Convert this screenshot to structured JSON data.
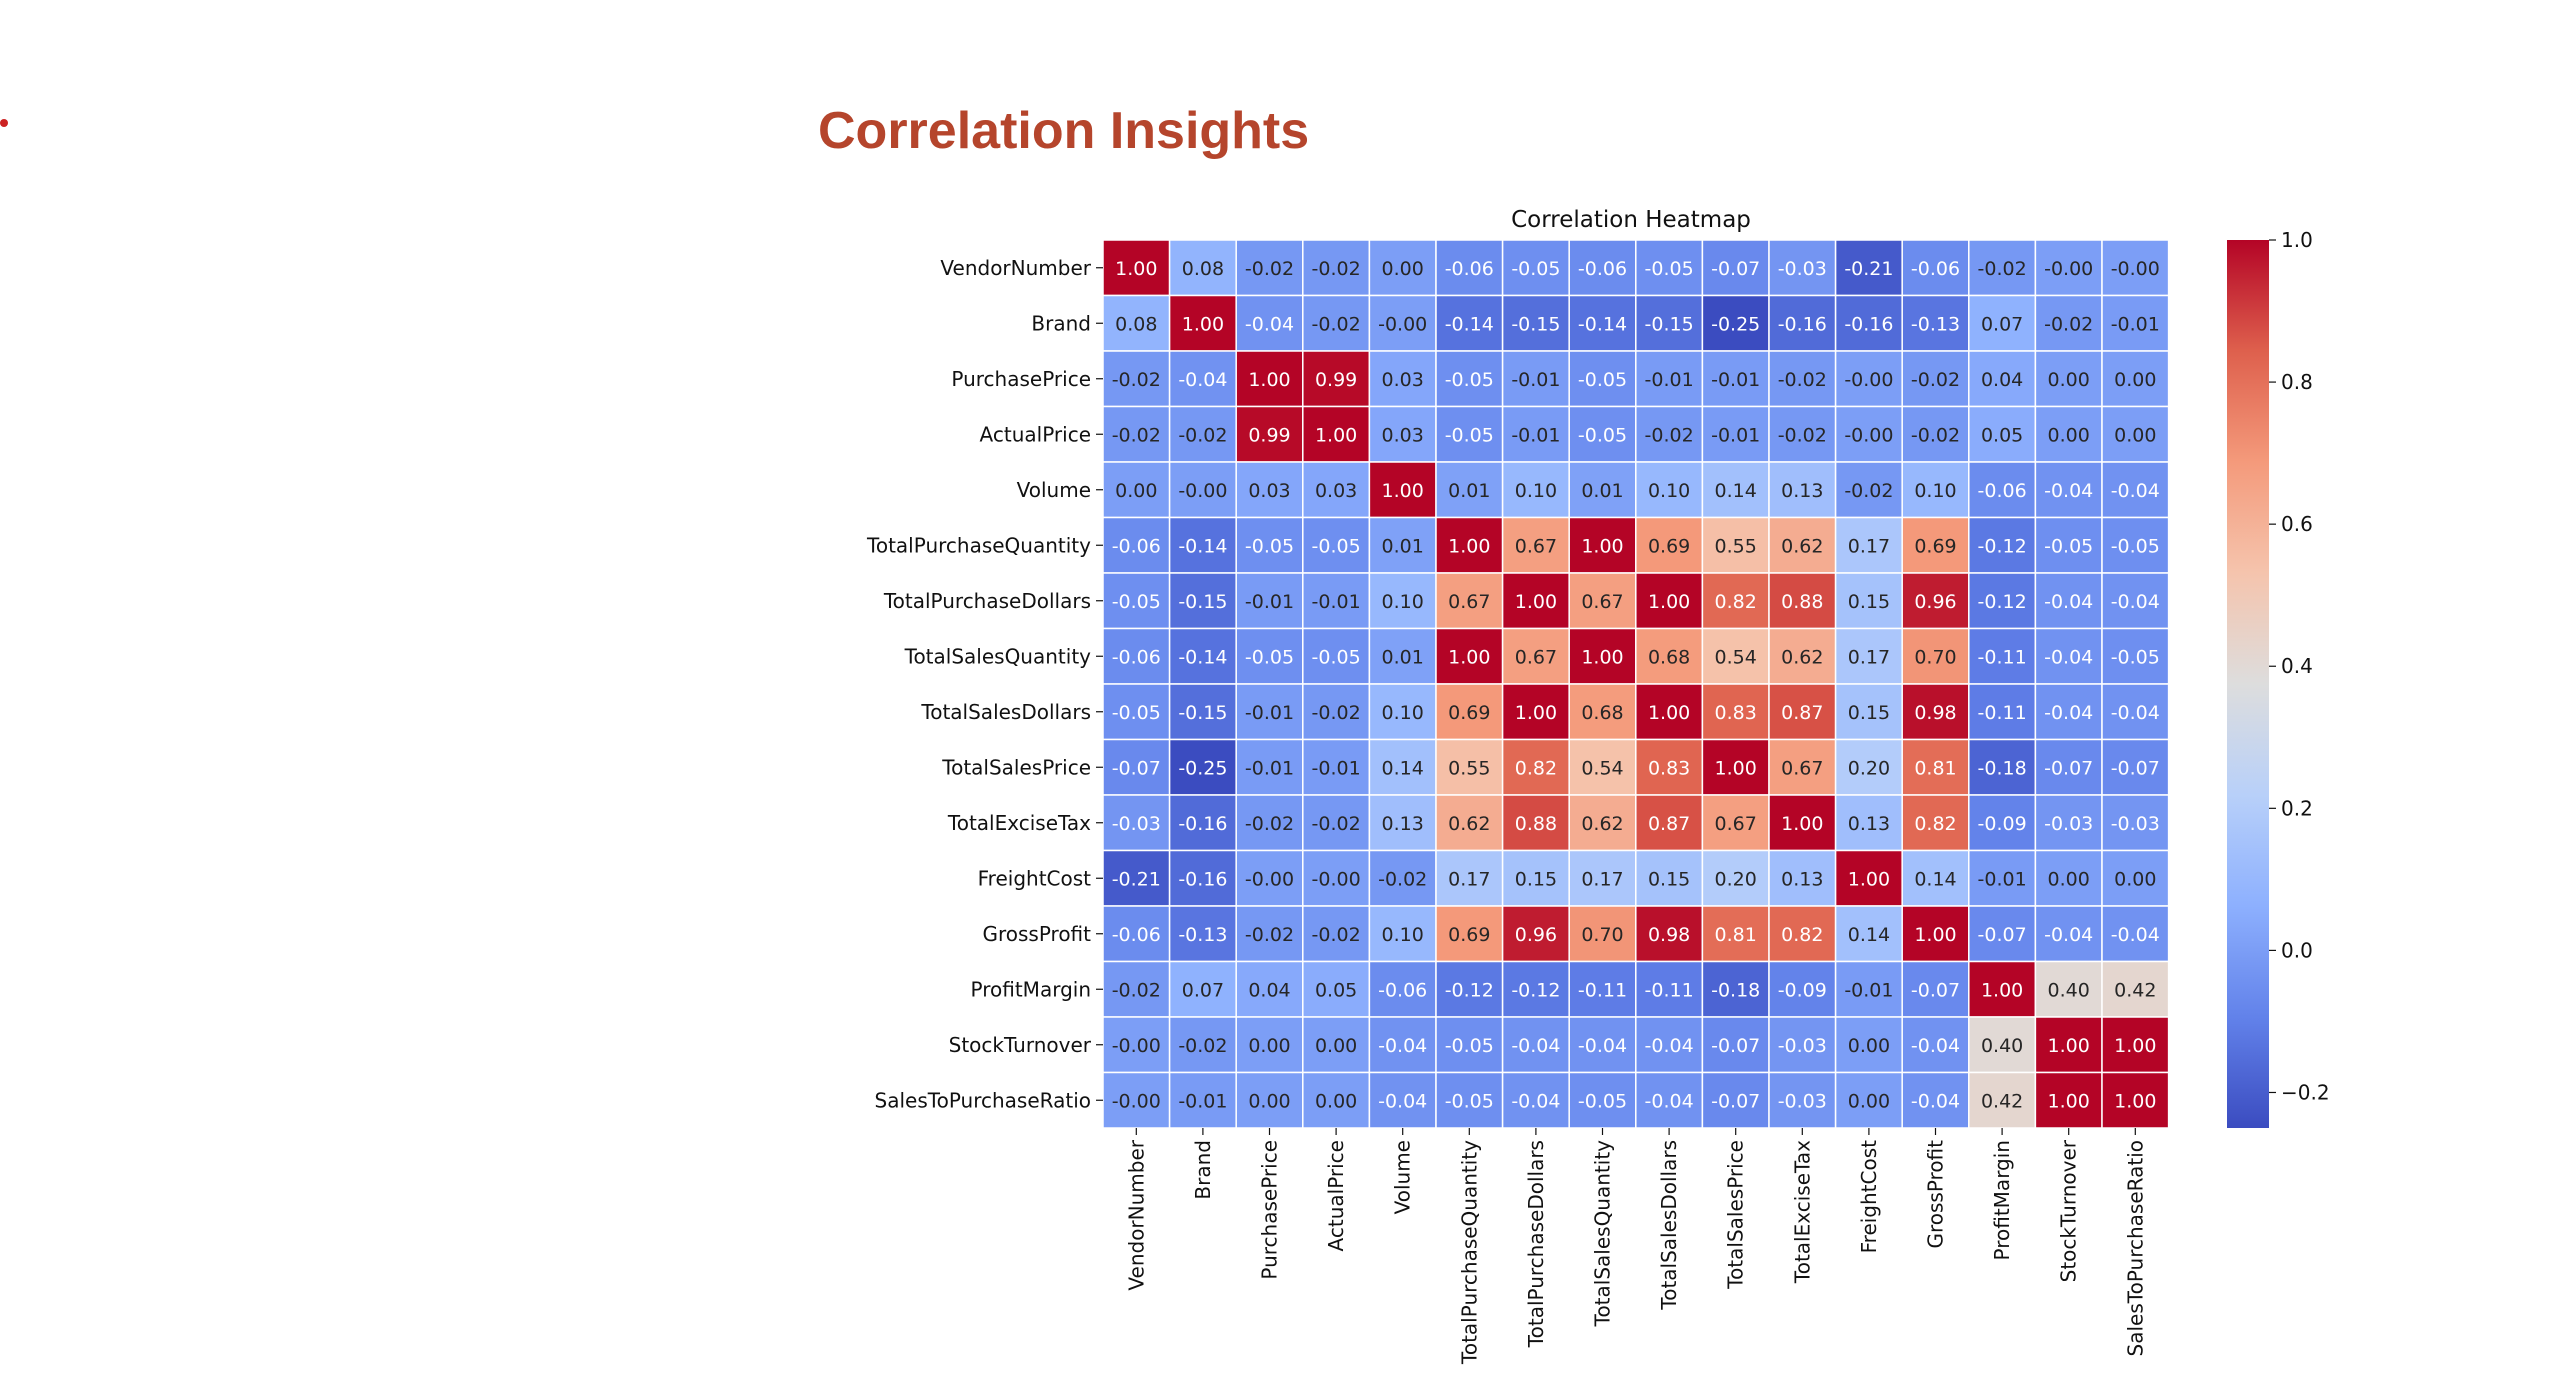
{
  "slide": {
    "title": "Correlation Insights",
    "title_color": "#b5452c",
    "bullet_color": "#cc2222"
  },
  "chart_data": {
    "type": "heatmap",
    "title": "Correlation Heatmap",
    "colormap": "coolwarm",
    "value_range": [
      -0.25,
      1.0
    ],
    "annotation_format": "2 decimals",
    "grid": "white cell borders",
    "colorbar": {
      "position": "right",
      "ticks": [
        -0.2,
        0.0,
        0.2,
        0.4,
        0.6,
        0.8,
        1.0
      ],
      "tick_labels": [
        "−0.2",
        "0.0",
        "0.2",
        "0.4",
        "0.6",
        "0.8",
        "1.0"
      ]
    },
    "labels": [
      "VendorNumber",
      "Brand",
      "PurchasePrice",
      "ActualPrice",
      "Volume",
      "TotalPurchaseQuantity",
      "TotalPurchaseDollars",
      "TotalSalesQuantity",
      "TotalSalesDollars",
      "TotalSalesPrice",
      "TotalExciseTax",
      "FreightCost",
      "GrossProfit",
      "ProfitMargin",
      "StockTurnover",
      "SalesToPurchaseRatio"
    ],
    "values": [
      [
        1.0,
        0.08,
        -0.02,
        -0.02,
        0.0,
        -0.06,
        -0.05,
        -0.06,
        -0.05,
        -0.07,
        -0.03,
        -0.21,
        -0.06,
        -0.02,
        -0.0,
        -0.0
      ],
      [
        0.08,
        1.0,
        -0.04,
        -0.02,
        -0.0,
        -0.14,
        -0.15,
        -0.14,
        -0.15,
        -0.25,
        -0.16,
        -0.16,
        -0.13,
        0.07,
        -0.02,
        -0.01
      ],
      [
        -0.02,
        -0.04,
        1.0,
        0.99,
        0.03,
        -0.05,
        -0.01,
        -0.05,
        -0.01,
        -0.01,
        -0.02,
        -0.0,
        -0.02,
        0.04,
        0.0,
        0.0
      ],
      [
        -0.02,
        -0.02,
        0.99,
        1.0,
        0.03,
        -0.05,
        -0.01,
        -0.05,
        -0.02,
        -0.01,
        -0.02,
        -0.0,
        -0.02,
        0.05,
        0.0,
        0.0
      ],
      [
        0.0,
        -0.0,
        0.03,
        0.03,
        1.0,
        0.01,
        0.1,
        0.01,
        0.1,
        0.14,
        0.13,
        -0.02,
        0.1,
        -0.06,
        -0.04,
        -0.04
      ],
      [
        -0.06,
        -0.14,
        -0.05,
        -0.05,
        0.01,
        1.0,
        0.67,
        1.0,
        0.69,
        0.55,
        0.62,
        0.17,
        0.69,
        -0.12,
        -0.05,
        -0.05
      ],
      [
        -0.05,
        -0.15,
        -0.01,
        -0.01,
        0.1,
        0.67,
        1.0,
        0.67,
        1.0,
        0.82,
        0.88,
        0.15,
        0.96,
        -0.12,
        -0.04,
        -0.04
      ],
      [
        -0.06,
        -0.14,
        -0.05,
        -0.05,
        0.01,
        1.0,
        0.67,
        1.0,
        0.68,
        0.54,
        0.62,
        0.17,
        0.7,
        -0.11,
        -0.04,
        -0.05
      ],
      [
        -0.05,
        -0.15,
        -0.01,
        -0.02,
        0.1,
        0.69,
        1.0,
        0.68,
        1.0,
        0.83,
        0.87,
        0.15,
        0.98,
        -0.11,
        -0.04,
        -0.04
      ],
      [
        -0.07,
        -0.25,
        -0.01,
        -0.01,
        0.14,
        0.55,
        0.82,
        0.54,
        0.83,
        1.0,
        0.67,
        0.2,
        0.81,
        -0.18,
        -0.07,
        -0.07
      ],
      [
        -0.03,
        -0.16,
        -0.02,
        -0.02,
        0.13,
        0.62,
        0.88,
        0.62,
        0.87,
        0.67,
        1.0,
        0.13,
        0.82,
        -0.09,
        -0.03,
        -0.03
      ],
      [
        -0.21,
        -0.16,
        -0.0,
        -0.0,
        -0.02,
        0.17,
        0.15,
        0.17,
        0.15,
        0.2,
        0.13,
        1.0,
        0.14,
        -0.01,
        0.0,
        0.0
      ],
      [
        -0.06,
        -0.13,
        -0.02,
        -0.02,
        0.1,
        0.69,
        0.96,
        0.7,
        0.98,
        0.81,
        0.82,
        0.14,
        1.0,
        -0.07,
        -0.04,
        -0.04
      ],
      [
        -0.02,
        0.07,
        0.04,
        0.05,
        -0.06,
        -0.12,
        -0.12,
        -0.11,
        -0.11,
        -0.18,
        -0.09,
        -0.01,
        -0.07,
        1.0,
        0.4,
        0.42
      ],
      [
        -0.0,
        -0.02,
        0.0,
        0.0,
        -0.04,
        -0.05,
        -0.04,
        -0.04,
        -0.04,
        -0.07,
        -0.03,
        0.0,
        -0.04,
        0.4,
        1.0,
        1.0
      ],
      [
        -0.0,
        -0.01,
        0.0,
        0.0,
        -0.04,
        -0.05,
        -0.04,
        -0.05,
        -0.04,
        -0.07,
        -0.03,
        0.0,
        -0.04,
        0.42,
        1.0,
        1.0
      ]
    ]
  }
}
